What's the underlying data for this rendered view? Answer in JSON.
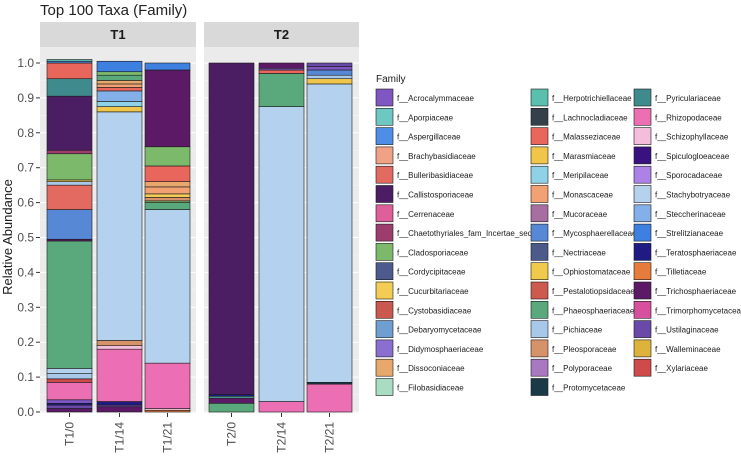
{
  "chart_data": {
    "type": "bar",
    "stacked": true,
    "title": "Top 100 Taxa (Family)",
    "ylabel": "Relative Abundance",
    "xlabel": "",
    "ylim": [
      0,
      1
    ],
    "yticks": [
      "0.0",
      "0.1",
      "0.2",
      "0.3",
      "0.4",
      "0.5",
      "0.6",
      "0.7",
      "0.8",
      "0.9",
      "1.0"
    ],
    "panels": [
      {
        "label": "T1",
        "samples": [
          "T1/0",
          "T1/14",
          "T1/21"
        ]
      },
      {
        "label": "T2",
        "samples": [
          "T2/0",
          "T2/14",
          "T2/21"
        ]
      }
    ],
    "legend_title": "Family",
    "families": [
      {
        "name": "f__Acrocalymmaceae",
        "color": "#7e57c2"
      },
      {
        "name": "f__Aporpiaceae",
        "color": "#6fc7c2"
      },
      {
        "name": "f__Aspergillaceae",
        "color": "#4f8de6"
      },
      {
        "name": "f__Brachybasidiaceae",
        "color": "#f0a286"
      },
      {
        "name": "f__Bulleribasidiaceae",
        "color": "#e36a61"
      },
      {
        "name": "f__Callistosporiaceae",
        "color": "#4b1d63"
      },
      {
        "name": "f__Cerrenaceae",
        "color": "#de5f9a"
      },
      {
        "name": "f__Chaetothyriales_fam_Incertae_sedis",
        "color": "#9c3d6e"
      },
      {
        "name": "f__Cladosporiaceae",
        "color": "#7cb96a"
      },
      {
        "name": "f__Cordycipitaceae",
        "color": "#4d5b8c"
      },
      {
        "name": "f__Cucurbitariaceae",
        "color": "#f2cc54"
      },
      {
        "name": "f__Cystobasidiaceae",
        "color": "#c9584f"
      },
      {
        "name": "f__Debaryomycetaceae",
        "color": "#6f9fd1"
      },
      {
        "name": "f__Didymosphaeriaceae",
        "color": "#8b6fd0"
      },
      {
        "name": "f__Dissoconiaceae",
        "color": "#e8a86c"
      },
      {
        "name": "f__Filobasidiaceae",
        "color": "#a8ddc3"
      },
      {
        "name": "f__Herpotrichiellaceae",
        "color": "#5bbfae"
      },
      {
        "name": "f__Lachnocladiaceae",
        "color": "#34404a"
      },
      {
        "name": "f__Malasseziaceae",
        "color": "#e8665c"
      },
      {
        "name": "f__Marasmiaceae",
        "color": "#f0c64a"
      },
      {
        "name": "f__Meripilaceae",
        "color": "#8fd1e6"
      },
      {
        "name": "f__Monascaceae",
        "color": "#f2a172"
      },
      {
        "name": "f__Mucoraceae",
        "color": "#a66fa0"
      },
      {
        "name": "f__Mycosphaerellaceae",
        "color": "#5688d6"
      },
      {
        "name": "f__Nectriaceae",
        "color": "#4c5a8a"
      },
      {
        "name": "f__Ophiostomataceae",
        "color": "#f0ca4c"
      },
      {
        "name": "f__Pestalotiopsidaceae",
        "color": "#cc5a4e"
      },
      {
        "name": "f__Phaeosphaeriaceae",
        "color": "#5aa97c"
      },
      {
        "name": "f__Pichiaceae",
        "color": "#a8c8ea"
      },
      {
        "name": "f__Pleosporaceae",
        "color": "#d6936a"
      },
      {
        "name": "f__Polyporaceae",
        "color": "#a878c0"
      },
      {
        "name": "f__Protomycetaceae",
        "color": "#1b3a48"
      },
      {
        "name": "f__Pyriculariaceae",
        "color": "#3f8a8c"
      },
      {
        "name": "f__Rhizopodaceae",
        "color": "#ec6fb4"
      },
      {
        "name": "f__Schizophyllaceae",
        "color": "#f2bedb"
      },
      {
        "name": "f__Spiculogloeaceae",
        "color": "#3a1280"
      },
      {
        "name": "f__Sporocadaceae",
        "color": "#ad82e8"
      },
      {
        "name": "f__Stachybotryaceae",
        "color": "#b4d2ee"
      },
      {
        "name": "f__Steccherinaceae",
        "color": "#84b0ea"
      },
      {
        "name": "f__Strelitzianaceae",
        "color": "#3d80e0"
      },
      {
        "name": "f__Teratosphaeriaceae",
        "color": "#1f1a84"
      },
      {
        "name": "f__Tilletiaceae",
        "color": "#e57c3c"
      },
      {
        "name": "f__Trichosphaeriaceae",
        "color": "#5c1a66"
      },
      {
        "name": "f__Trimorphomycetaceae",
        "color": "#d6509e"
      },
      {
        "name": "f__Ustilaginaceae",
        "color": "#6a4aa8"
      },
      {
        "name": "f__Walleminaceae",
        "color": "#ddb33c"
      },
      {
        "name": "f__Xylariaceae",
        "color": "#cf4a4a"
      }
    ],
    "stacks": {
      "T1/0": [
        [
          "f__Trichosphaeriaceae",
          0.01
        ],
        [
          "f__Ustilaginaceae",
          0.01
        ],
        [
          "f__Teratosphaeriaceae",
          0.005
        ],
        [
          "f__Acrocalymmaceae",
          0.01
        ],
        [
          "f__Rhizopodaceae",
          0.05
        ],
        [
          "f__Xylariaceae",
          0.01
        ],
        [
          "f__Pichiaceae",
          0.015
        ],
        [
          "f__Stachybotryaceae",
          0.015
        ],
        [
          "f__Phaeosphaeriaceae",
          0.365
        ],
        [
          "f__Trichosphaeriaceae",
          0.005
        ],
        [
          "f__Mycosphaerellaceae",
          0.085
        ],
        [
          "f__Bulleribasidiaceae",
          0.07
        ],
        [
          "f__Pichiaceae",
          0.01
        ],
        [
          "f__Cucurbitariaceae",
          0.005
        ],
        [
          "f__Cladosporiaceae",
          0.075
        ],
        [
          "f__Chaetothyriales_fam_Incertae_sedis",
          0.01
        ],
        [
          "f__Callistosporiaceae",
          0.155
        ],
        [
          "f__Pyriculariaceae",
          0.05
        ],
        [
          "f__Malasseziaceae",
          0.045
        ],
        [
          "f__Aspergillaceae",
          0.005
        ],
        [
          "f__Herpotrichiellaceae",
          0.005
        ]
      ],
      "T1/14": [
        [
          "f__Trichosphaeriaceae",
          0.015
        ],
        [
          "f__Ustilaginaceae",
          0.005
        ],
        [
          "f__Teratosphaeriaceae",
          0.01
        ],
        [
          "f__Rhizopodaceae",
          0.15
        ],
        [
          "f__Schizophyllaceae",
          0.01
        ],
        [
          "f__Pleosporaceae",
          0.015
        ],
        [
          "f__Stachybotryaceae",
          0.655
        ],
        [
          "f__Marasmiaceae",
          0.015
        ],
        [
          "f__Meripilaceae",
          0.015
        ],
        [
          "f__Steccherinaceae",
          0.03
        ],
        [
          "f__Malasseziaceae",
          0.01
        ],
        [
          "f__Monascaceae",
          0.01
        ],
        [
          "f__Dissoconiaceae",
          0.01
        ],
        [
          "f__Phaeosphaeriaceae",
          0.015
        ],
        [
          "f__Cladosporiaceae",
          0.01
        ],
        [
          "f__Strelitzianaceae",
          0.03
        ]
      ],
      "T1/21": [
        [
          "f__Tilletiaceae",
          0.005
        ],
        [
          "f__Schizophyllaceae",
          0.005
        ],
        [
          "f__Rhizopodaceae",
          0.13
        ],
        [
          "f__Stachybotryaceae",
          0.44
        ],
        [
          "f__Phaeosphaeriaceae",
          0.02
        ],
        [
          "f__Cladosporiaceae",
          0.005
        ],
        [
          "f__Pleosporaceae",
          0.01
        ],
        [
          "f__Cucurbitariaceae",
          0.01
        ],
        [
          "f__Monascaceae",
          0.02
        ],
        [
          "f__Dissoconiaceae",
          0.015
        ],
        [
          "f__Malasseziaceae",
          0.045
        ],
        [
          "f__Cladosporiaceae",
          0.055
        ],
        [
          "f__Trichosphaeriaceae",
          0.22
        ],
        [
          "f__Strelitzianaceae",
          0.02
        ]
      ],
      "T2/0": [
        [
          "f__Phaeosphaeriaceae",
          0.025
        ],
        [
          "f__Trichosphaeriaceae",
          0.015
        ],
        [
          "f__Herpotrichiellaceae",
          0.005
        ],
        [
          "f__Teratosphaeriaceae",
          0.005
        ],
        [
          "f__Callistosporiaceae",
          0.95
        ]
      ],
      "T2/14": [
        [
          "f__Rhizopodaceae",
          0.03
        ],
        [
          "f__Stachybotryaceae",
          0.845
        ],
        [
          "f__Phaeosphaeriaceae",
          0.095
        ],
        [
          "f__Malasseziaceae",
          0.01
        ],
        [
          "f__Acrocalymmaceae",
          0.005
        ],
        [
          "f__Trichosphaeriaceae",
          0.015
        ]
      ],
      "T2/21": [
        [
          "f__Rhizopodaceae",
          0.08
        ],
        [
          "f__Protomycetaceae",
          0.005
        ],
        [
          "f__Stachybotryaceae",
          0.855
        ],
        [
          "f__Marasmiaceae",
          0.015
        ],
        [
          "f__Pichiaceae",
          0.01
        ],
        [
          "f__Mycosphaerellaceae",
          0.015
        ],
        [
          "f__Acrocalymmaceae",
          0.01
        ],
        [
          "f__Ustilaginaceae",
          0.01
        ]
      ]
    }
  }
}
